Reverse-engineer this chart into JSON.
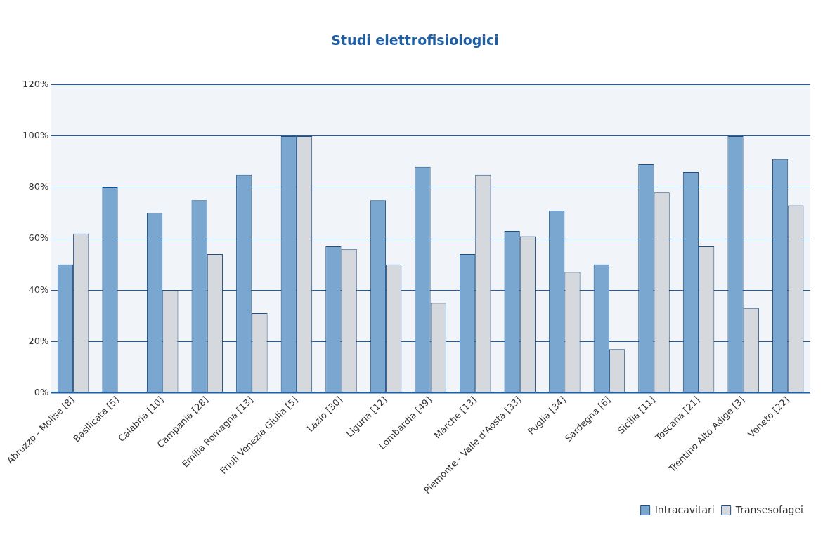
{
  "chart_data": {
    "type": "bar",
    "title": "Studi elettrofisiologici",
    "categories": [
      "Abruzzo - Molise [8]",
      "Basilicata [5]",
      "Calabria [10]",
      "Campania [28]",
      "Emilia Romagna [13]",
      "Friuli Venezia Giulia [5]",
      "Lazio [30]",
      "Liguria [12]",
      "Lombardia [49]",
      "Marche [13]",
      "Piemonte - Valle d’Aosta [33]",
      "Puglia [34]",
      "Sardegna [6]",
      "Sicilia [11]",
      "Toscana [21]",
      "Trentino Alto Adige [3]",
      "Veneto [22]"
    ],
    "series": [
      {
        "name": "Intracavitari",
        "color": "#7aa7d0",
        "values": [
          50,
          80,
          70,
          75,
          85,
          100,
          57,
          75,
          88,
          54,
          63,
          71,
          50,
          89,
          86,
          100,
          91
        ]
      },
      {
        "name": "Transesofagei",
        "color": "#d5d9de",
        "values": [
          62,
          0,
          40,
          54,
          31,
          100,
          56,
          50,
          35,
          85,
          61,
          47,
          17,
          78,
          57,
          33,
          73
        ]
      }
    ],
    "ylim": [
      0,
      120
    ],
    "yticks": [
      {
        "value": 0,
        "label": "0%"
      },
      {
        "value": 20,
        "label": "20%"
      },
      {
        "value": 40,
        "label": "40%"
      },
      {
        "value": 60,
        "label": "60%"
      },
      {
        "value": 80,
        "label": "80%"
      },
      {
        "value": 100,
        "label": "100%"
      },
      {
        "value": 120,
        "label": "120%"
      }
    ],
    "grid": "y",
    "legend": "bottom right"
  }
}
